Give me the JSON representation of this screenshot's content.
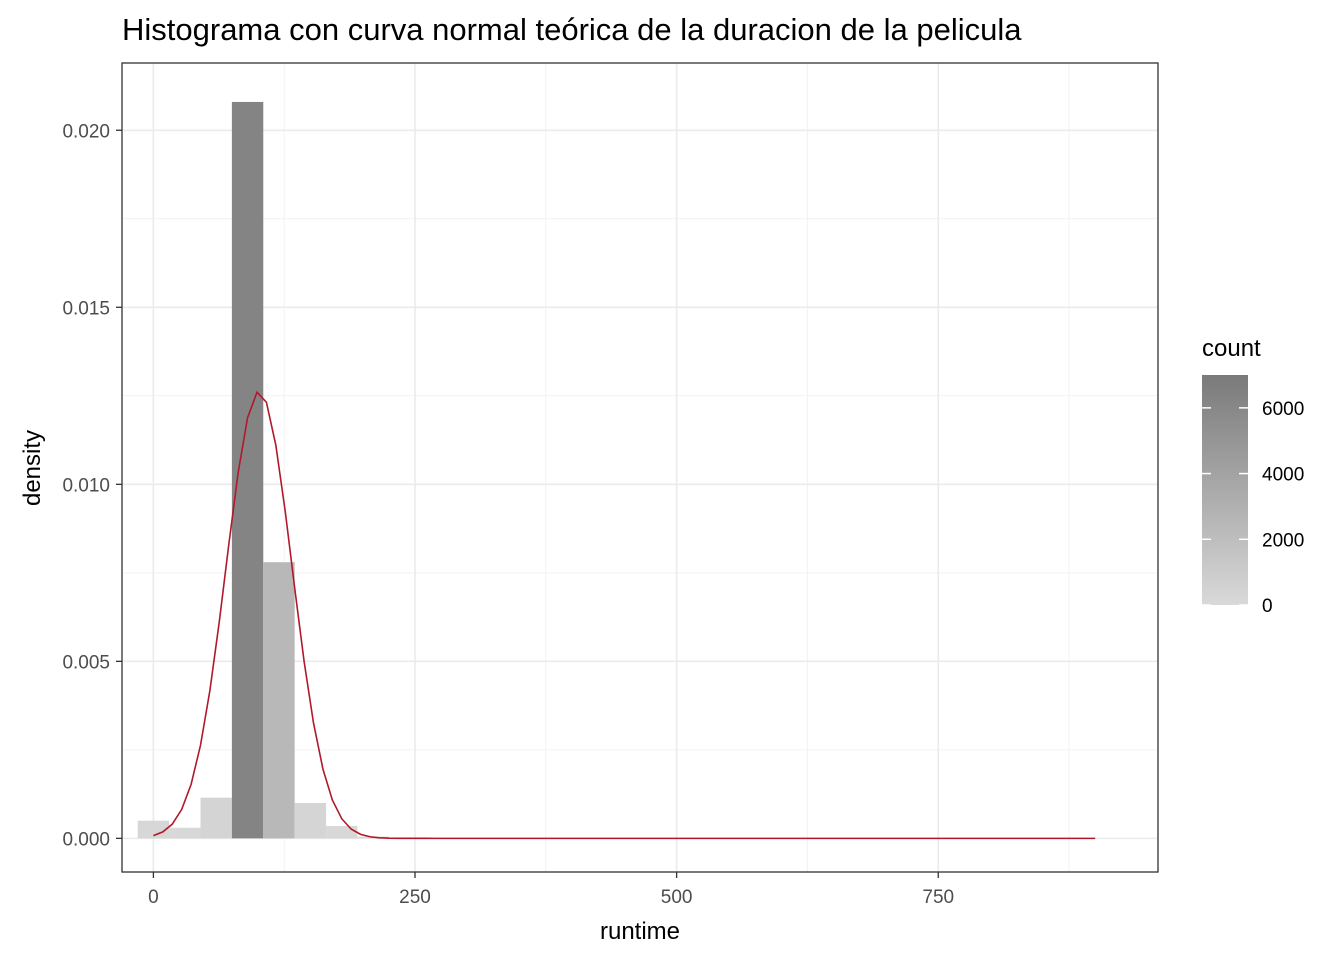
{
  "chart_data": {
    "type": "bar",
    "title": "Histograma con curva normal teórica de la duracion de la pelicula",
    "xlabel": "runtime",
    "ylabel": "density",
    "xlim": [
      -30,
      960
    ],
    "ylim": [
      -0.00095,
      0.0219
    ],
    "x_ticks": [
      0,
      250,
      500,
      750
    ],
    "x_tick_labels": [
      "0",
      "250",
      "500",
      "750"
    ],
    "y_ticks": [
      0.0,
      0.005,
      0.01,
      0.015,
      0.02
    ],
    "y_tick_labels": [
      "0.000",
      "0.005",
      "0.010",
      "0.015",
      "0.020"
    ],
    "grid": true,
    "bin_width": 30,
    "bins": [
      {
        "x0": -15,
        "x1": 15,
        "density": 0.0005,
        "count": 150
      },
      {
        "x0": 15,
        "x1": 45,
        "density": 0.0003,
        "count": 90
      },
      {
        "x0": 45,
        "x1": 75,
        "density": 0.00115,
        "count": 350
      },
      {
        "x0": 75,
        "x1": 105,
        "density": 0.0208,
        "count": 6300
      },
      {
        "x0": 105,
        "x1": 135,
        "density": 0.0078,
        "count": 2400
      },
      {
        "x0": 135,
        "x1": 165,
        "density": 0.001,
        "count": 300
      },
      {
        "x0": 165,
        "x1": 195,
        "density": 0.00035,
        "count": 110
      },
      {
        "x0": 195,
        "x1": 225,
        "density": 5e-05,
        "count": 15
      }
    ],
    "normal_curve": {
      "mean": 101,
      "sd": 31.6,
      "x_min": 0,
      "x_max": 900,
      "color": "#b2182b"
    },
    "legend": {
      "title": "count",
      "placement": "right",
      "min": 0,
      "max": 7000,
      "ticks": [
        0,
        2000,
        4000,
        6000
      ],
      "tick_labels": [
        "0",
        "2000",
        "4000",
        "6000"
      ],
      "color_low": "#d9d9d9",
      "color_high": "#7a7a7a"
    }
  }
}
